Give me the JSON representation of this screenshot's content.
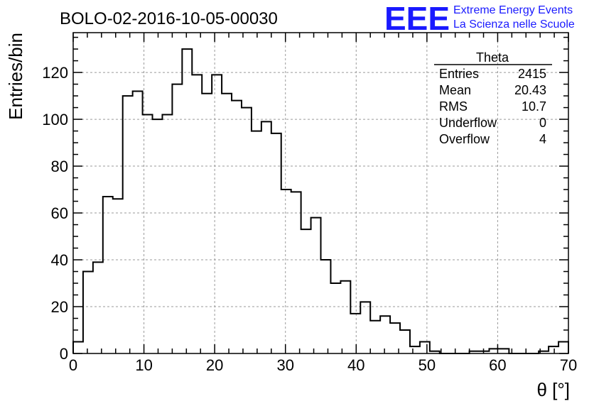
{
  "header": {
    "run_title": "BOLO-02-2016-10-05-00030",
    "logo_text": "EEE",
    "logo_line1": "Extreme Energy Events",
    "logo_line2": "La Scienza nelle Scuole",
    "logo_color": "#1a1aff"
  },
  "stats_box": {
    "title": "Theta",
    "rows": [
      {
        "label": "Entries",
        "value": "2415"
      },
      {
        "label": "Mean",
        "value": "20.43"
      },
      {
        "label": "RMS",
        "value": "10.7"
      },
      {
        "label": "Underflow",
        "value": "0"
      },
      {
        "label": "Overflow",
        "value": "4"
      }
    ]
  },
  "chart_data": {
    "type": "bar",
    "style": "step-histogram",
    "title": "BOLO-02-2016-10-05-00030",
    "xlabel": "θ [°]",
    "ylabel": "Entries/bin",
    "xlim": [
      0,
      70
    ],
    "ylim": [
      0,
      137
    ],
    "bin_width": 1.4,
    "xticks": [
      0,
      10,
      20,
      30,
      40,
      50,
      60,
      70
    ],
    "yticks": [
      0,
      20,
      40,
      60,
      80,
      100,
      120
    ],
    "grid": true,
    "line_color": "#000000",
    "values": [
      5,
      35,
      39,
      67,
      66,
      110,
      112,
      102,
      100,
      102,
      115,
      130,
      119,
      111,
      119,
      111,
      108,
      105,
      95,
      99,
      94,
      70,
      69,
      53,
      58,
      40,
      30,
      31,
      17,
      22,
      14,
      16,
      13,
      10,
      3,
      5,
      1,
      0,
      0,
      0,
      1,
      1,
      2,
      2,
      0,
      0,
      0,
      1,
      3,
      5
    ]
  }
}
